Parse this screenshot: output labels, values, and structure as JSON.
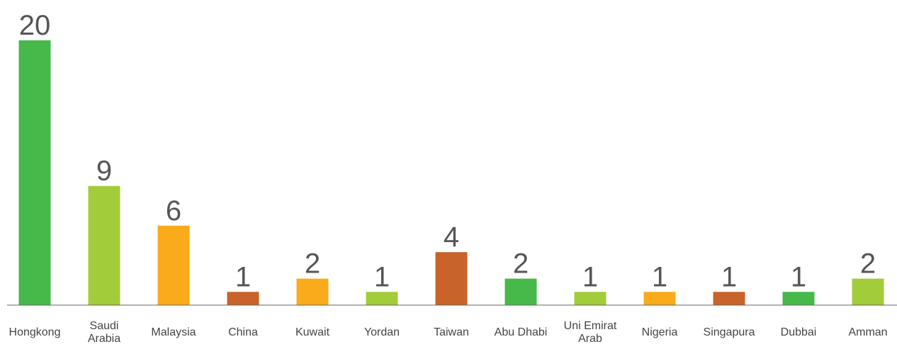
{
  "chart_data": {
    "type": "bar",
    "categories": [
      "Hongkong",
      "Saudi\nArabia",
      "Malaysia",
      "China",
      "Kuwait",
      "Yordan",
      "Taiwan",
      "Abu Dhabi",
      "Uni Emirat\nArab",
      "Nigeria",
      "Singapura",
      "Dubbai",
      "Amman"
    ],
    "values": [
      20,
      9,
      6,
      1,
      2,
      1,
      4,
      2,
      1,
      1,
      1,
      1,
      2
    ],
    "colors": [
      "#46b94a",
      "#a3cc3a",
      "#f9ab1c",
      "#c8632a",
      "#f9ab1c",
      "#a3cc3a",
      "#c8632a",
      "#46b94a",
      "#a3cc3a",
      "#f9ab1c",
      "#c8632a",
      "#46b94a",
      "#a3cc3a"
    ],
    "ylim": [
      0,
      20
    ]
  }
}
